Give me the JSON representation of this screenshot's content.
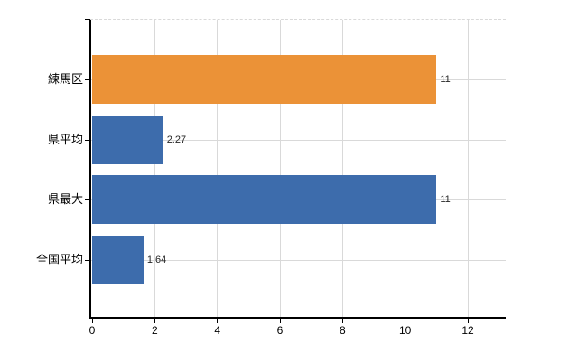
{
  "chart_data": {
    "type": "bar",
    "orientation": "horizontal",
    "title": "",
    "xlabel": "",
    "ylabel": "",
    "categories": [
      "練馬区",
      "県平均",
      "県最大",
      "全国平均"
    ],
    "values": [
      11,
      2.27,
      11,
      1.64
    ],
    "value_labels": [
      "11",
      "2.27",
      "11",
      "1.64"
    ],
    "bar_colors": [
      "#EB9237",
      "#3D6CAC",
      "#3D6CAC",
      "#3D6CAC"
    ],
    "x_ticks": [
      "0",
      "2",
      "4",
      "6",
      "8",
      "10",
      "12"
    ],
    "x_tick_values": [
      0,
      2,
      4,
      6,
      8,
      10,
      12
    ],
    "xlim": [
      0,
      13.2
    ],
    "grid": true,
    "legend": false
  },
  "colors": {
    "bar_highlight": "#EB9237",
    "bar_default": "#3D6CAC",
    "gridline": "#d9d9d9",
    "axis": "#000000",
    "value_text": "#262626",
    "label_text": "#000000",
    "background": "#ffffff"
  }
}
